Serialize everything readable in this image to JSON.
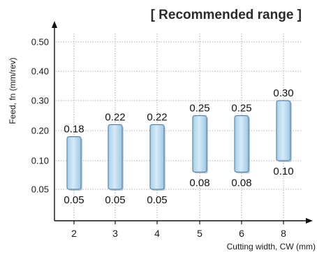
{
  "chart_data": {
    "type": "range-bar",
    "title": "[ Recommended range ]",
    "ylabel": "Feed, fn (mm/rev)",
    "xlabel": "Cutting width, CW (mm)",
    "categories": [
      "2",
      "3",
      "4",
      "5",
      "6",
      "8"
    ],
    "y_ticks": [
      "0.05",
      "0.10",
      "0.20",
      "0.30",
      "0.40",
      "0.50"
    ],
    "y_tick_values": [
      0.05,
      0.1,
      0.2,
      0.3,
      0.4,
      0.5
    ],
    "series": [
      {
        "low": [
          0.05,
          0.05,
          0.05,
          0.08,
          0.08,
          0.1
        ],
        "high": [
          0.18,
          0.22,
          0.22,
          0.25,
          0.25,
          0.3
        ],
        "low_labels": [
          "0.05",
          "0.05",
          "0.05",
          "0.08",
          "0.08",
          "0.10"
        ],
        "high_labels": [
          "0.18",
          "0.22",
          "0.22",
          "0.25",
          "0.25",
          "0.30"
        ]
      }
    ],
    "grid": true,
    "colors": {
      "bar_fill_top": "#d6eaf8",
      "bar_fill_bottom": "#a9cde9",
      "bar_stroke": "#5a86a8"
    }
  }
}
